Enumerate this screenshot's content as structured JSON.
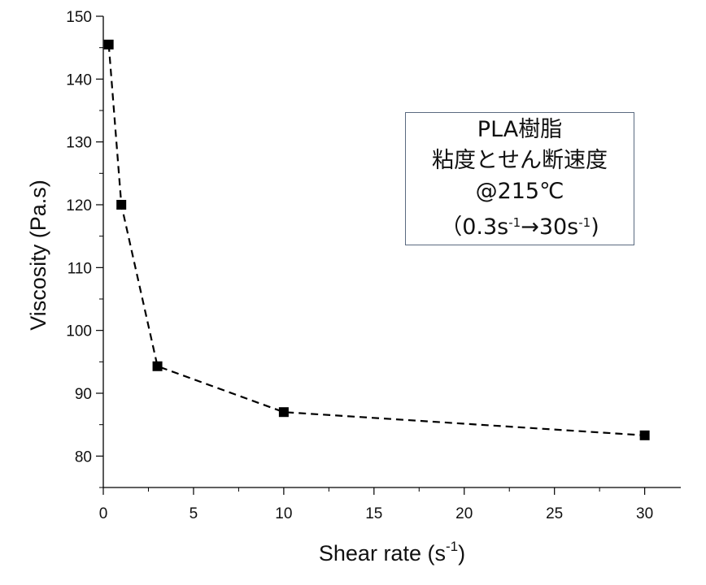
{
  "chart_data": {
    "type": "line",
    "xlabel": "Shear rate (s",
    "xlabel_sup": "-1",
    "xlabel_end": ")",
    "ylabel": "Viscosity (Pa.s)",
    "xlim": [
      0,
      32
    ],
    "ylim": [
      75,
      150
    ],
    "xticks": [
      0,
      5,
      10,
      15,
      20,
      25,
      30
    ],
    "yticks": [
      80,
      90,
      100,
      110,
      120,
      130,
      140,
      150
    ],
    "series": [
      {
        "x": [
          0.3,
          1,
          3,
          10,
          30
        ],
        "y": [
          145.5,
          120,
          94.3,
          87,
          83.3
        ],
        "line_style": "dashed",
        "marker": "square",
        "color": "#000000"
      }
    ],
    "grid": false
  },
  "annotation": {
    "line1": "PLA樹脂",
    "line2": "粘度とせん断速度",
    "line3": "@215℃",
    "line4_a": "（0.3s",
    "line4_sup1": "-1",
    "line4_b": "→30s",
    "line4_sup2": "-1",
    "line4_c": ")"
  }
}
